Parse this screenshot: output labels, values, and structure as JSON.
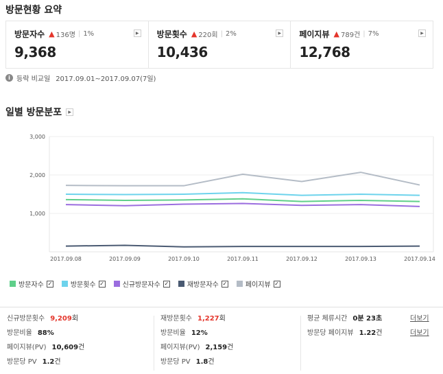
{
  "summary": {
    "title": "방문현황 요약",
    "cards": [
      {
        "label": "방문자수",
        "delta": "136명",
        "pct": "1%",
        "value": "9,368"
      },
      {
        "label": "방문횟수",
        "delta": "220회",
        "pct": "2%",
        "value": "10,436"
      },
      {
        "label": "페이지뷰",
        "delta": "789건",
        "pct": "7%",
        "value": "12,768"
      }
    ],
    "compare_label": "등락 비교일",
    "compare_range": "2017.09.01~2017.09.07(7일)"
  },
  "daily": {
    "title": "일별 방문분포"
  },
  "chart_data": {
    "type": "line",
    "x": [
      "2017.09.08",
      "2017.09.09",
      "2017.09.10",
      "2017.09.11",
      "2017.09.12",
      "2017.09.13",
      "2017.09.14"
    ],
    "ylim": [
      0,
      3000
    ],
    "yticks": [
      "3,000",
      "2,000",
      "1,000"
    ],
    "ytick_values": [
      3000,
      2000,
      1000
    ],
    "grid": true,
    "legend_position": "bottom-left",
    "series": [
      {
        "name": "방문자수",
        "color": "#5fcf8a",
        "values": [
          1360,
          1340,
          1350,
          1380,
          1310,
          1340,
          1310
        ]
      },
      {
        "name": "방문횟수",
        "color": "#6dd3ec",
        "values": [
          1500,
          1490,
          1500,
          1540,
          1470,
          1500,
          1470
        ]
      },
      {
        "name": "신규방문자수",
        "color": "#9b6ddf",
        "values": [
          1230,
          1200,
          1240,
          1260,
          1210,
          1230,
          1180
        ]
      },
      {
        "name": "재방문자수",
        "color": "#4a5a72",
        "values": [
          150,
          170,
          130,
          140,
          140,
          140,
          150
        ]
      },
      {
        "name": "페이지뷰",
        "color": "#b4bcc6",
        "values": [
          1730,
          1720,
          1720,
          2020,
          1830,
          2070,
          1740
        ]
      }
    ]
  },
  "stats": {
    "col1": [
      {
        "label": "신규방문횟수",
        "value": "9,209",
        "unit": "회",
        "red": true
      },
      {
        "label": "방문비율",
        "value": "88%",
        "unit": "",
        "red": false
      },
      {
        "label": "페이지뷰(PV)",
        "value": "10,609",
        "unit": "건",
        "red": false
      },
      {
        "label": "방문당 PV",
        "value": "1.2",
        "unit": "건",
        "red": false
      }
    ],
    "col2": [
      {
        "label": "재방문횟수",
        "value": "1,227",
        "unit": "회",
        "red": true
      },
      {
        "label": "방문비율",
        "value": "12%",
        "unit": "",
        "red": false
      },
      {
        "label": "페이지뷰(PV)",
        "value": "2,159",
        "unit": "건",
        "red": false
      },
      {
        "label": "방문당 PV",
        "value": "1.8",
        "unit": "건",
        "red": false
      }
    ],
    "col3": [
      {
        "label": "평균 체류시간",
        "value": "0분 23초",
        "unit": ""
      },
      {
        "label": "방문당 페이지뷰",
        "value": "1.22",
        "unit": "건"
      }
    ],
    "more_label": "더보기"
  }
}
